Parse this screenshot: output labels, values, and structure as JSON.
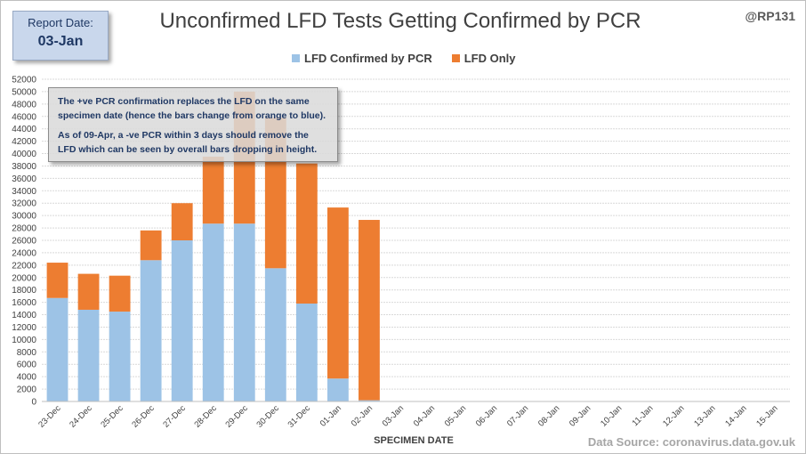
{
  "report": {
    "label": "Report Date:",
    "value": "03-Jan"
  },
  "title": "Unconfirmed LFD Tests Getting Confirmed by PCR",
  "handle": "@RP131",
  "annotation": {
    "line1": "The +ve PCR confirmation replaces the LFD on the same specimen date (hence the bars change from orange to blue).",
    "line2": "As of 09-Apr, a -ve PCR within 3 days should remove the LFD which can be seen by overall bars dropping in height."
  },
  "source": "Data Source: coronavirus.data.gov.uk",
  "colors": {
    "confirmed": "#9dc3e6",
    "lfd_only": "#ed7d31",
    "grid": "#d9d9d9"
  },
  "chart_data": {
    "type": "bar",
    "stacked": true,
    "categories": [
      "23-Dec",
      "24-Dec",
      "25-Dec",
      "26-Dec",
      "27-Dec",
      "28-Dec",
      "29-Dec",
      "30-Dec",
      "31-Dec",
      "01-Jan",
      "02-Jan",
      "03-Jan",
      "04-Jan",
      "05-Jan",
      "06-Jan",
      "07-Jan",
      "08-Jan",
      "09-Jan",
      "10-Jan",
      "11-Jan",
      "12-Jan",
      "13-Jan",
      "14-Jan",
      "15-Jan"
    ],
    "series": [
      {
        "name": "LFD Confirmed by PCR",
        "values": [
          16700,
          14800,
          14500,
          22800,
          26000,
          28700,
          28700,
          21500,
          15800,
          3700,
          200,
          0,
          0,
          0,
          0,
          0,
          0,
          0,
          0,
          0,
          0,
          0,
          0,
          0
        ]
      },
      {
        "name": "LFD Only",
        "values": [
          5700,
          5800,
          5800,
          4800,
          6000,
          10800,
          21300,
          24300,
          22600,
          27600,
          29100,
          0,
          0,
          0,
          0,
          0,
          0,
          0,
          0,
          0,
          0,
          0,
          0,
          0
        ]
      }
    ],
    "xlabel": "SPECIMEN DATE",
    "ylabel": "",
    "ylim": [
      0,
      52000
    ],
    "ytick_step": 2000,
    "grid": true,
    "legend": "top-center"
  }
}
